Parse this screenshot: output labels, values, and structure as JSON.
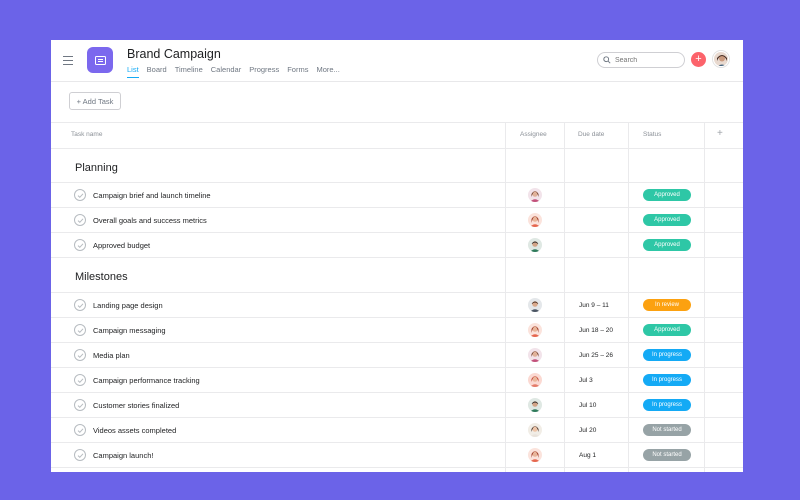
{
  "header": {
    "project_title": "Brand Campaign",
    "tabs": [
      {
        "label": "List"
      },
      {
        "label": "Board"
      },
      {
        "label": "Timeline"
      },
      {
        "label": "Calendar"
      },
      {
        "label": "Progress"
      },
      {
        "label": "Forms"
      },
      {
        "label": "More..."
      }
    ],
    "search_placeholder": "Search",
    "add_button": "+"
  },
  "toolbar": {
    "add_task_label": "+ Add Task"
  },
  "table": {
    "columns": {
      "task_name": "Task name",
      "assignee": "Assignee",
      "due_date": "Due date",
      "status": "Status",
      "add_column": "+"
    }
  },
  "colors": {
    "background": "#6b63e8",
    "accent": "#14aaf5",
    "approved": "#2ec7a6",
    "in_review": "#fca110",
    "in_progress": "#14aaf5",
    "not_started": "#97a3a6",
    "add_button": "#fc636b"
  },
  "sections": [
    {
      "title": "Planning",
      "tasks": [
        {
          "name": "Campaign brief and launch timeline",
          "due": "",
          "status": "Approved"
        },
        {
          "name": "Overall goals and success metrics",
          "due": "",
          "status": "Approved"
        },
        {
          "name": "Approved budget",
          "due": "",
          "status": "Approved"
        }
      ]
    },
    {
      "title": "Milestones",
      "tasks": [
        {
          "name": "Landing page design",
          "due": "Jun 9 – 11",
          "status": "In review"
        },
        {
          "name": "Campaign messaging",
          "due": "Jun 18 – 20",
          "status": "Approved"
        },
        {
          "name": "Media plan",
          "due": "Jun 25 – 26",
          "status": "In progress"
        },
        {
          "name": "Campaign performance tracking",
          "due": "Jul 3",
          "status": "In progress"
        },
        {
          "name": "Customer stories finalized",
          "due": "Jul 10",
          "status": "In progress"
        },
        {
          "name": "Videos assets completed",
          "due": "Jul 20",
          "status": "Not started"
        },
        {
          "name": "Campaign launch!",
          "due": "Aug 1",
          "status": "Not started"
        }
      ]
    }
  ]
}
